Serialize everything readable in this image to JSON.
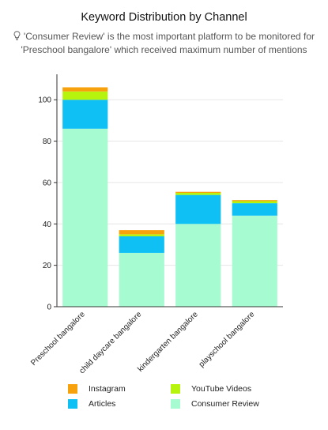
{
  "chart_data": {
    "type": "bar",
    "stacked": true,
    "title": "Keyword Distribution by Channel",
    "subtitle_line1": "'Consumer Review' is the most important platform to be monitored for",
    "subtitle_line2": "'Preschool bangalore' which received maximum number of mentions",
    "icon": "lightbulb-icon",
    "categories": [
      "Preschool bangalore",
      "child daycare bangalore",
      "kindergarten bangalore",
      "playschool bangalore"
    ],
    "series": [
      {
        "name": "Consumer Review",
        "color": "#a6fcd0",
        "values": [
          86,
          26,
          40,
          44
        ]
      },
      {
        "name": "Articles",
        "color": "#0fc0f5",
        "values": [
          14,
          8,
          14,
          6
        ]
      },
      {
        "name": "YouTube Videos",
        "color": "#b6f40d",
        "values": [
          4,
          1,
          1,
          1
        ]
      },
      {
        "name": "Instagram",
        "color": "#f7a10c",
        "values": [
          2,
          2,
          0.5,
          0.5
        ]
      }
    ],
    "yticks": [
      0,
      20,
      40,
      60,
      80,
      100
    ],
    "ylim": [
      0,
      110
    ],
    "grid": true,
    "legend_position": "bottom",
    "legend_order": [
      "Instagram",
      "YouTube Videos",
      "Articles",
      "Consumer Review"
    ]
  }
}
